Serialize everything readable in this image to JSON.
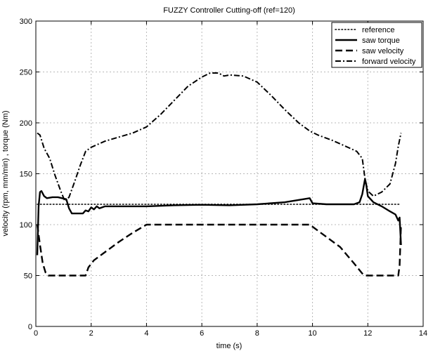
{
  "chart_data": {
    "type": "line",
    "title": "FUZZY Controller Cutting-off (ref=120)",
    "xlabel": "time (s)",
    "ylabel": "velocity (rpm, mm/min) , torque (Nm)",
    "xlim": [
      0,
      14
    ],
    "ylim": [
      0,
      300
    ],
    "xticks": [
      0,
      2,
      4,
      6,
      8,
      10,
      12,
      14
    ],
    "yticks": [
      0,
      50,
      100,
      150,
      200,
      250,
      300
    ],
    "grid": true,
    "legend_position": "top-right",
    "series": [
      {
        "name": "reference",
        "style": "dotted",
        "points": [
          [
            0.05,
            120
          ],
          [
            13.2,
            120
          ]
        ]
      },
      {
        "name": "saw torque",
        "style": "solid",
        "points": [
          [
            0.05,
            70
          ],
          [
            0.1,
            118
          ],
          [
            0.15,
            132
          ],
          [
            0.2,
            133
          ],
          [
            0.3,
            128
          ],
          [
            0.4,
            126
          ],
          [
            0.6,
            127
          ],
          [
            0.8,
            127
          ],
          [
            1.1,
            125
          ],
          [
            1.2,
            116
          ],
          [
            1.3,
            111
          ],
          [
            1.5,
            111
          ],
          [
            1.7,
            111
          ],
          [
            1.8,
            114
          ],
          [
            1.9,
            113
          ],
          [
            2.0,
            117
          ],
          [
            2.1,
            115
          ],
          [
            2.2,
            118
          ],
          [
            2.3,
            116
          ],
          [
            2.5,
            118
          ],
          [
            3.0,
            118
          ],
          [
            4.0,
            118
          ],
          [
            5.0,
            119
          ],
          [
            6.0,
            119.5
          ],
          [
            7.0,
            119
          ],
          [
            8.0,
            120
          ],
          [
            9.0,
            122
          ],
          [
            9.9,
            126
          ],
          [
            10.0,
            121
          ],
          [
            10.5,
            120
          ],
          [
            11.0,
            120
          ],
          [
            11.5,
            120
          ],
          [
            11.7,
            122
          ],
          [
            11.8,
            130
          ],
          [
            11.9,
            145
          ],
          [
            11.95,
            138
          ],
          [
            12.0,
            128
          ],
          [
            12.2,
            122
          ],
          [
            12.5,
            118
          ],
          [
            12.8,
            113
          ],
          [
            13.0,
            110
          ],
          [
            13.1,
            104
          ],
          [
            13.15,
            107
          ],
          [
            13.2,
            80
          ]
        ]
      },
      {
        "name": "saw velocity",
        "style": "dashed",
        "points": [
          [
            0.05,
            100
          ],
          [
            0.15,
            80
          ],
          [
            0.25,
            62
          ],
          [
            0.35,
            53
          ],
          [
            0.45,
            50
          ],
          [
            1.8,
            50
          ],
          [
            1.9,
            58
          ],
          [
            2.1,
            65
          ],
          [
            2.5,
            73
          ],
          [
            3.0,
            83
          ],
          [
            3.5,
            92
          ],
          [
            4.0,
            100
          ],
          [
            9.9,
            100
          ],
          [
            10.2,
            94
          ],
          [
            10.5,
            88
          ],
          [
            11.0,
            78
          ],
          [
            11.5,
            62
          ],
          [
            11.8,
            52
          ],
          [
            11.9,
            50
          ],
          [
            13.1,
            50
          ],
          [
            13.15,
            60
          ],
          [
            13.2,
            100
          ]
        ]
      },
      {
        "name": "forward velocity",
        "style": "dashdot",
        "points": [
          [
            0.05,
            190
          ],
          [
            0.15,
            188
          ],
          [
            0.3,
            175
          ],
          [
            0.5,
            165
          ],
          [
            0.7,
            148
          ],
          [
            0.9,
            133
          ],
          [
            1.05,
            123
          ],
          [
            1.2,
            127
          ],
          [
            1.4,
            142
          ],
          [
            1.6,
            158
          ],
          [
            1.8,
            172
          ],
          [
            2.0,
            176
          ],
          [
            2.5,
            182
          ],
          [
            3.0,
            186
          ],
          [
            3.5,
            190
          ],
          [
            4.0,
            196
          ],
          [
            4.5,
            208
          ],
          [
            5.0,
            222
          ],
          [
            5.5,
            236
          ],
          [
            6.0,
            245
          ],
          [
            6.3,
            249
          ],
          [
            6.6,
            249
          ],
          [
            6.8,
            246
          ],
          [
            7.0,
            247
          ],
          [
            7.5,
            246
          ],
          [
            8.0,
            240
          ],
          [
            8.5,
            227
          ],
          [
            9.0,
            213
          ],
          [
            9.5,
            200
          ],
          [
            9.9,
            192
          ],
          [
            10.2,
            188
          ],
          [
            10.7,
            183
          ],
          [
            11.2,
            177
          ],
          [
            11.6,
            172
          ],
          [
            11.8,
            165
          ],
          [
            11.9,
            145
          ],
          [
            12.0,
            133
          ],
          [
            12.2,
            128
          ],
          [
            12.5,
            132
          ],
          [
            12.8,
            140
          ],
          [
            13.0,
            160
          ],
          [
            13.1,
            177
          ],
          [
            13.2,
            190
          ]
        ]
      }
    ]
  }
}
